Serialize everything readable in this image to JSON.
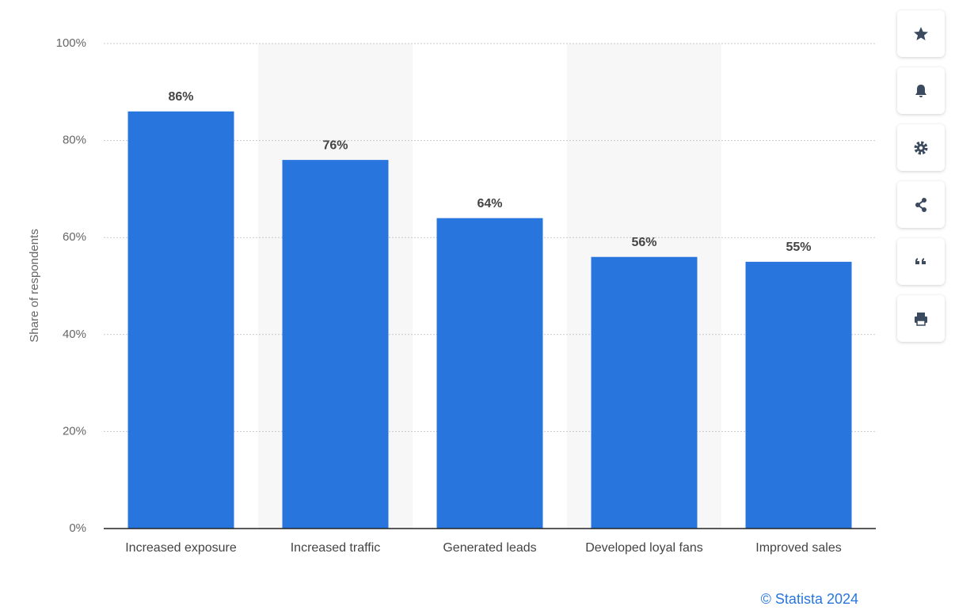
{
  "chart_data": {
    "type": "bar",
    "y_label": "Share of respondents",
    "categories": [
      "Increased exposure",
      "Increased traffic",
      "Generated leads",
      "Developed loyal fans",
      "Improved sales"
    ],
    "values": [
      86,
      76,
      64,
      56,
      55
    ],
    "value_labels": [
      "86%",
      "76%",
      "64%",
      "56%",
      "55%"
    ],
    "color": "#2876dd",
    "ylim": [
      0,
      100
    ],
    "yticks": [
      {
        "value": 0,
        "label": "0%"
      },
      {
        "value": 20,
        "label": "20%"
      },
      {
        "value": 40,
        "label": "40%"
      },
      {
        "value": 60,
        "label": "60%"
      },
      {
        "value": 80,
        "label": "80%"
      },
      {
        "value": 100,
        "label": "100%"
      }
    ],
    "grid": true,
    "credit": "© Statista 2024"
  }
}
